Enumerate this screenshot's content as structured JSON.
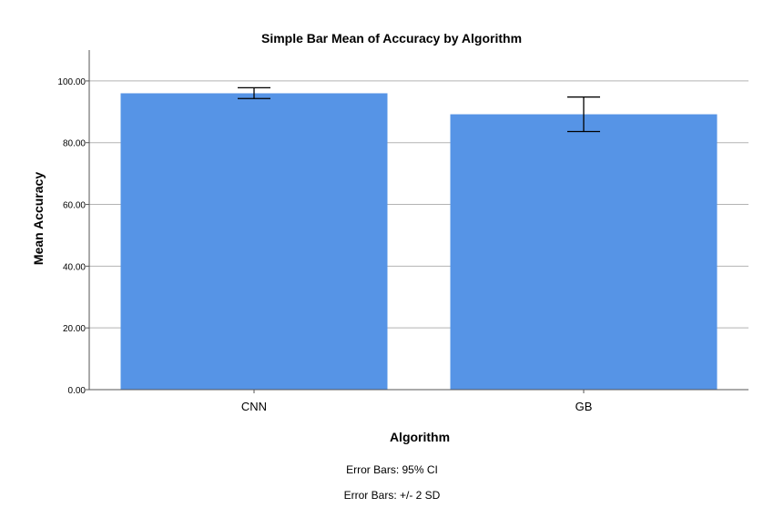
{
  "chart_data": {
    "type": "bar",
    "title": "Simple Bar Mean of Accuracy by Algorithm",
    "xlabel": "Algorithm",
    "ylabel": "Mean Accuracy",
    "categories": [
      "CNN",
      "GB"
    ],
    "values": [
      96.0,
      89.2
    ],
    "error_bars": [
      {
        "low": 94.3,
        "high": 97.8
      },
      {
        "low": 83.6,
        "high": 94.8
      }
    ],
    "ylim": [
      0,
      110
    ],
    "yticks": [
      "0.00",
      "20.00",
      "40.00",
      "60.00",
      "80.00",
      "100.00"
    ],
    "ytick_values": [
      0,
      20,
      40,
      60,
      80,
      100
    ],
    "grid": true,
    "bar_color": "#5694e6",
    "error_bar_color": "#000000",
    "gridline_color": "#b3b3b3"
  },
  "footnotes": {
    "line1": "Error Bars: 95% CI",
    "line2": "Error Bars: +/- 2 SD"
  }
}
